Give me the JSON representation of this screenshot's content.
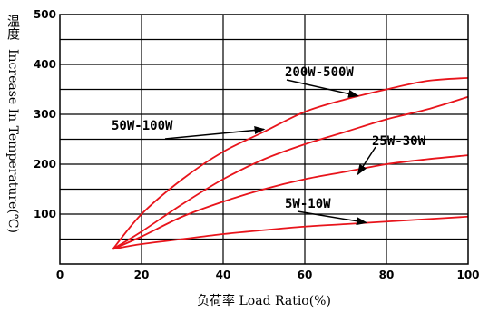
{
  "chart_data": {
    "type": "line",
    "xlabel": "负荷率 Load Ratio(%)",
    "ylabel_cjk": "温度",
    "ylabel": "Increase In Temperature(℃)",
    "xlim": [
      0,
      100
    ],
    "ylim": [
      0,
      500
    ],
    "xticks": [
      0,
      20,
      40,
      60,
      80,
      100
    ],
    "yticks": [
      100,
      200,
      300,
      400,
      500
    ],
    "grid": true,
    "series": [
      {
        "name": "200W-500W",
        "x": [
          13,
          20,
          30,
          40,
          50,
          60,
          70,
          80,
          90,
          100
        ],
        "y": [
          30,
          100,
          170,
          225,
          265,
          305,
          330,
          350,
          367,
          373
        ]
      },
      {
        "name": "50W-100W",
        "x": [
          13,
          20,
          30,
          40,
          50,
          60,
          70,
          80,
          90,
          100
        ],
        "y": [
          30,
          65,
          120,
          170,
          210,
          240,
          265,
          290,
          310,
          335
        ]
      },
      {
        "name": "25W-30W",
        "x": [
          13,
          20,
          30,
          40,
          50,
          60,
          70,
          80,
          90,
          100
        ],
        "y": [
          30,
          55,
          95,
          125,
          150,
          170,
          185,
          200,
          210,
          218
        ]
      },
      {
        "name": "5W-10W",
        "x": [
          13,
          20,
          30,
          40,
          50,
          60,
          70,
          80,
          90,
          100
        ],
        "y": [
          30,
          40,
          50,
          60,
          68,
          75,
          80,
          85,
          90,
          95
        ]
      }
    ],
    "annotations": [
      {
        "text": "200W-500W",
        "arrow_to": [
          73,
          337
        ]
      },
      {
        "text": "50W-100W",
        "arrow_to": [
          50,
          270
        ]
      },
      {
        "text": "25W-30W",
        "arrow_to": [
          73,
          180
        ]
      },
      {
        "text": "5W-10W",
        "arrow_to": [
          75,
          83
        ]
      }
    ]
  }
}
